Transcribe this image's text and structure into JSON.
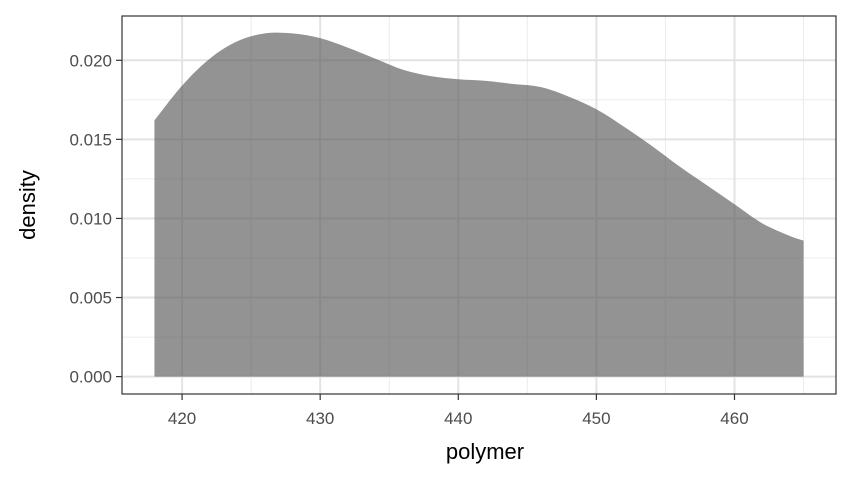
{
  "chart_data": {
    "type": "area",
    "title": "",
    "xlabel": "polymer",
    "ylabel": "density",
    "xlim": [
      415.65,
      467.35
    ],
    "ylim": [
      -0.0011,
      0.0228
    ],
    "x_ticks": [
      420,
      430,
      440,
      450,
      460
    ],
    "x_tick_labels": [
      "420",
      "430",
      "440",
      "450",
      "460"
    ],
    "x_minor_ticks": [
      425,
      435,
      445,
      455,
      465
    ],
    "y_ticks": [
      0.0,
      0.005,
      0.01,
      0.015,
      0.02
    ],
    "y_tick_labels": [
      "0.000",
      "0.005",
      "0.010",
      "0.015",
      "0.020"
    ],
    "y_minor_ticks": [
      0.0025,
      0.0075,
      0.0125,
      0.0175
    ],
    "grid": true,
    "theme": "bw",
    "fill_color": "#595959",
    "fill_alpha": 0.65,
    "x": [
      418,
      420,
      422,
      424,
      426,
      428,
      430,
      432,
      434,
      436,
      438,
      440,
      442,
      444,
      446,
      448,
      450,
      452,
      454,
      456,
      458,
      460,
      462,
      464,
      465
    ],
    "y": [
      0.0162,
      0.0184,
      0.0201,
      0.0212,
      0.0217,
      0.0217,
      0.0214,
      0.0208,
      0.0201,
      0.0194,
      0.019,
      0.0188,
      0.0187,
      0.0185,
      0.0183,
      0.0177,
      0.0169,
      0.0158,
      0.0146,
      0.0133,
      0.0121,
      0.0109,
      0.0097,
      0.0089,
      0.0086
    ]
  }
}
